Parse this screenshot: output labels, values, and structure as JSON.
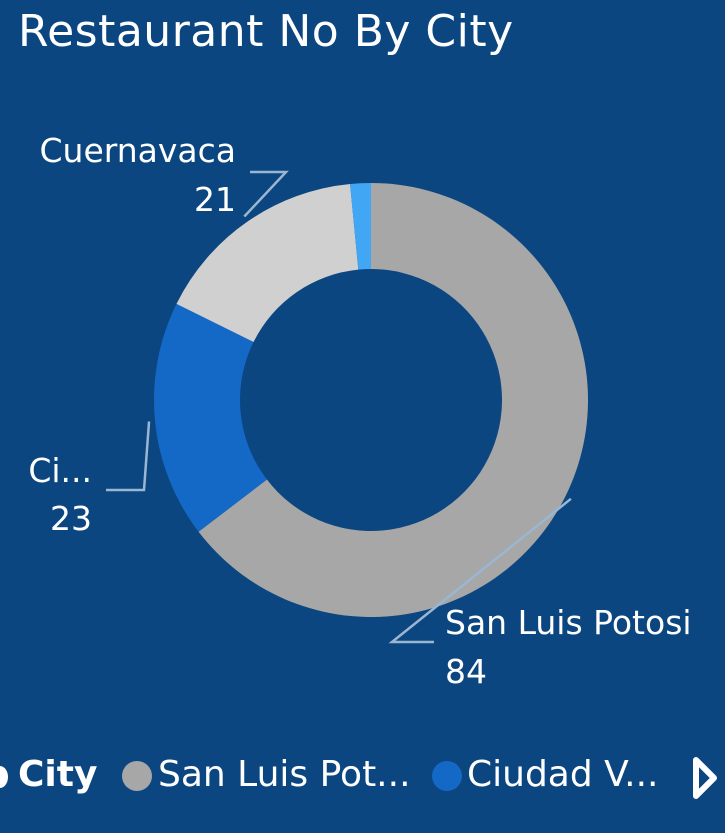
{
  "title": "Restaurant No By City",
  "chart_data": {
    "type": "pie",
    "title": "Restaurant No By City",
    "slices": [
      {
        "label": "San Luis Potosi",
        "value": 84,
        "color": "#a7a7a7",
        "shown_label": "San Luis Potosi",
        "shown_value": "84"
      },
      {
        "label": "Ciudad V...",
        "value": 23,
        "color": "#1468c6",
        "shown_label": "Ci...",
        "shown_value": "23"
      },
      {
        "label": "Cuernavaca",
        "value": 21,
        "color": "#d0d0d0",
        "shown_label": "Cuernavaca",
        "shown_value": "21"
      },
      {
        "label": "",
        "value": 2,
        "color": "#41a7f5"
      }
    ],
    "legend": {
      "title": "City",
      "position": "bottom",
      "items": [
        "San Luis Pot...",
        "Ciudad V..."
      ]
    }
  },
  "colors": {
    "background": "#0b4680",
    "leader_line": "#9ab6d3"
  },
  "legend_next_icon": "chevron-right-icon"
}
